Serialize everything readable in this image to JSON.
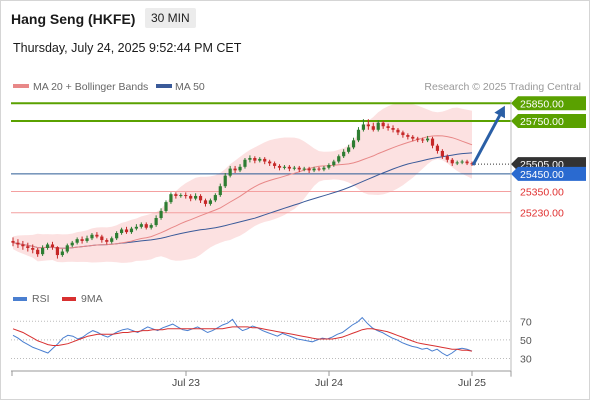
{
  "header": {
    "instrument": "Hang Seng (HKFE)",
    "timeframe": "30 MIN",
    "timestamp": "Thursday, July 24, 2025 9:52:44 PM CET"
  },
  "legend": {
    "ma20": "MA 20 + Bollinger Bands",
    "ma50": "MA 50",
    "credit": "Research © 2025 Trading Central"
  },
  "rsi_legend": {
    "rsi": "RSI",
    "ma9": "9MA"
  },
  "colors": {
    "resistance": "#5aa100",
    "support": "#f4a0a0",
    "current": "#2a5a95",
    "last_price": "#333333",
    "candle_up": "#2e7d32",
    "candle_down": "#c62828",
    "ma20": "#e88888",
    "ma50": "#3a5a99",
    "bollinger": "#fbdcdc",
    "rsi": "#4a7fd0",
    "rsi_ma": "#d83030",
    "arrow": "#2a5fa6"
  },
  "chart_data": [
    {
      "type": "candlestick",
      "x_labels": [
        "Jul 23",
        "Jul 24",
        "Jul 25"
      ],
      "y_range": [
        24860,
        25880
      ],
      "levels": [
        {
          "value": 25850,
          "label": "25850.00",
          "kind": "resistance"
        },
        {
          "value": 25750,
          "label": "25750.00",
          "kind": "resistance"
        },
        {
          "value": 25505,
          "label": "25505.00",
          "kind": "last"
        },
        {
          "value": 25450,
          "label": "25450.00",
          "kind": "current"
        },
        {
          "value": 25350,
          "label": "25350.00",
          "kind": "support"
        },
        {
          "value": 25230,
          "label": "25230.00",
          "kind": "support"
        }
      ],
      "arrow": {
        "from": 25500,
        "to": 25850
      },
      "candles": [
        [
          25070,
          25060,
          25090,
          25040
        ],
        [
          25060,
          25050,
          25080,
          25030
        ],
        [
          25050,
          25040,
          25070,
          25020
        ],
        [
          25040,
          25030,
          25060,
          25010
        ],
        [
          25030,
          25020,
          25050,
          25000
        ],
        [
          25020,
          24995,
          25030,
          24980
        ],
        [
          24995,
          25030,
          25045,
          24985
        ],
        [
          25030,
          25050,
          25060,
          25020
        ],
        [
          25050,
          25035,
          25065,
          25020
        ],
        [
          25035,
          24990,
          25040,
          24970
        ],
        [
          24990,
          25010,
          25025,
          24980
        ],
        [
          25010,
          25045,
          25055,
          25000
        ],
        [
          25045,
          25060,
          25070,
          25035
        ],
        [
          25060,
          25080,
          25090,
          25050
        ],
        [
          25080,
          25070,
          25095,
          25055
        ],
        [
          25070,
          25085,
          25100,
          25060
        ],
        [
          25085,
          25105,
          25115,
          25075
        ],
        [
          25105,
          25095,
          25120,
          25085
        ],
        [
          25095,
          25075,
          25105,
          25060
        ],
        [
          25075,
          25065,
          25085,
          25050
        ],
        [
          25065,
          25085,
          25095,
          25055
        ],
        [
          25085,
          25115,
          25125,
          25075
        ],
        [
          25115,
          25135,
          25145,
          25105
        ],
        [
          25135,
          25120,
          25150,
          25110
        ],
        [
          25120,
          25140,
          25150,
          25110
        ],
        [
          25140,
          25150,
          25165,
          25130
        ],
        [
          25150,
          25165,
          25175,
          25140
        ],
        [
          25165,
          25145,
          25175,
          25135
        ],
        [
          25145,
          25160,
          25170,
          25135
        ],
        [
          25160,
          25200,
          25215,
          25150
        ],
        [
          25200,
          25240,
          25255,
          25190
        ],
        [
          25240,
          25290,
          25300,
          25230
        ],
        [
          25290,
          25335,
          25345,
          25280
        ],
        [
          25335,
          25325,
          25345,
          25310
        ],
        [
          25325,
          25330,
          25340,
          25315
        ],
        [
          25330,
          25325,
          25345,
          25310
        ],
        [
          25325,
          25310,
          25335,
          25295
        ],
        [
          25310,
          25325,
          25340,
          25300
        ],
        [
          25325,
          25300,
          25335,
          25285
        ],
        [
          25300,
          25280,
          25310,
          25265
        ],
        [
          25280,
          25300,
          25310,
          25270
        ],
        [
          25300,
          25330,
          25340,
          25290
        ],
        [
          25330,
          25380,
          25395,
          25320
        ],
        [
          25380,
          25440,
          25455,
          25370
        ],
        [
          25440,
          25480,
          25495,
          25430
        ],
        [
          25480,
          25470,
          25495,
          25455
        ],
        [
          25470,
          25490,
          25505,
          25460
        ],
        [
          25490,
          25530,
          25540,
          25480
        ],
        [
          25530,
          25540,
          25555,
          25515
        ],
        [
          25540,
          25525,
          25550,
          25510
        ],
        [
          25525,
          25535,
          25545,
          25515
        ],
        [
          25535,
          25520,
          25545,
          25505
        ],
        [
          25520,
          25510,
          25530,
          25495
        ],
        [
          25510,
          25495,
          25520,
          25480
        ],
        [
          25495,
          25485,
          25505,
          25470
        ],
        [
          25485,
          25490,
          25500,
          25475
        ],
        [
          25490,
          25480,
          25500,
          25465
        ],
        [
          25480,
          25485,
          25495,
          25470
        ],
        [
          25485,
          25475,
          25495,
          25460
        ],
        [
          25475,
          25480,
          25490,
          25465
        ],
        [
          25480,
          25470,
          25490,
          25455
        ],
        [
          25470,
          25480,
          25490,
          25460
        ],
        [
          25480,
          25475,
          25490,
          25465
        ],
        [
          25475,
          25485,
          25495,
          25465
        ],
        [
          25485,
          25500,
          25510,
          25475
        ],
        [
          25500,
          25520,
          25530,
          25490
        ],
        [
          25520,
          25550,
          25560,
          25510
        ],
        [
          25550,
          25575,
          25590,
          25540
        ],
        [
          25575,
          25600,
          25615,
          25565
        ],
        [
          25600,
          25640,
          25655,
          25590
        ],
        [
          25640,
          25700,
          25715,
          25630
        ],
        [
          25700,
          25730,
          25760,
          25690
        ],
        [
          25730,
          25720,
          25760,
          25700
        ],
        [
          25720,
          25700,
          25740,
          25690
        ],
        [
          25700,
          25740,
          25755,
          25690
        ],
        [
          25740,
          25720,
          25750,
          25705
        ],
        [
          25720,
          25710,
          25735,
          25695
        ],
        [
          25710,
          25700,
          25725,
          25685
        ],
        [
          25700,
          25685,
          25710,
          25670
        ],
        [
          25685,
          25670,
          25695,
          25655
        ],
        [
          25670,
          25660,
          25680,
          25645
        ],
        [
          25660,
          25650,
          25670,
          25635
        ],
        [
          25650,
          25645,
          25660,
          25630
        ],
        [
          25645,
          25640,
          25655,
          25625
        ],
        [
          25640,
          25650,
          25665,
          25630
        ],
        [
          25650,
          25610,
          25660,
          25595
        ],
        [
          25610,
          25580,
          25620,
          25565
        ],
        [
          25580,
          25550,
          25590,
          25535
        ],
        [
          25550,
          25530,
          25560,
          25515
        ],
        [
          25530,
          25510,
          25540,
          25495
        ],
        [
          25510,
          25515,
          25525,
          25500
        ],
        [
          25515,
          25520,
          25530,
          25505
        ],
        [
          25520,
          25510,
          25530,
          25500
        ],
        [
          25510,
          25505,
          25520,
          25495
        ]
      ]
    },
    {
      "type": "line",
      "name": "RSI",
      "y_ticks": [
        70,
        50,
        30
      ],
      "y_range": [
        22,
        80
      ],
      "series": [
        {
          "name": "RSI",
          "values": [
            55,
            52,
            48,
            45,
            42,
            40,
            38,
            36,
            41,
            46,
            52,
            55,
            54,
            51,
            53,
            57,
            60,
            58,
            55,
            53,
            56,
            59,
            61,
            62,
            60,
            58,
            61,
            64,
            62,
            60,
            63,
            65,
            67,
            64,
            61,
            60,
            62,
            64,
            61,
            58,
            60,
            63,
            66,
            68,
            72,
            64,
            60,
            62,
            65,
            63,
            60,
            58,
            56,
            54,
            57,
            55,
            53,
            51,
            50,
            49,
            48,
            50,
            52,
            51,
            53,
            56,
            58,
            62,
            66,
            69,
            74,
            68,
            63,
            60,
            58,
            55,
            52,
            50,
            47,
            45,
            43,
            42,
            40,
            41,
            38,
            40,
            36,
            33,
            36,
            40,
            41,
            40,
            38
          ]
        },
        {
          "name": "9MA",
          "values": [
            62,
            60,
            58,
            55,
            52,
            49,
            47,
            45,
            44,
            44,
            45,
            46,
            48,
            50,
            52,
            54,
            55,
            56,
            56,
            56,
            56,
            57,
            58,
            58,
            59,
            59,
            60,
            60,
            61,
            61,
            61,
            62,
            62,
            62,
            62,
            62,
            62,
            62,
            62,
            62,
            62,
            62,
            62,
            63,
            64,
            64,
            64,
            64,
            63,
            63,
            62,
            61,
            60,
            59,
            58,
            57,
            56,
            55,
            54,
            53,
            52,
            51,
            51,
            51,
            51,
            52,
            53,
            55,
            57,
            59,
            61,
            62,
            62,
            61,
            60,
            59,
            57,
            55,
            53,
            51,
            49,
            47,
            46,
            45,
            44,
            43,
            42,
            41,
            40,
            40,
            39,
            39,
            38
          ]
        }
      ]
    }
  ]
}
